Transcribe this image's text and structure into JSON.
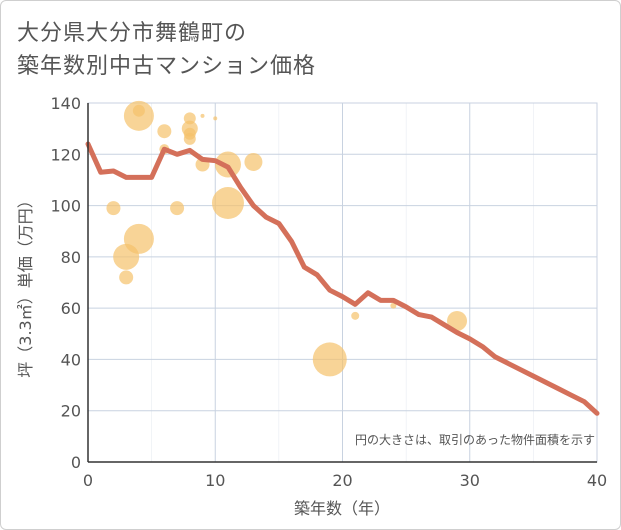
{
  "title_line1": "大分県大分市舞鶴町の",
  "title_line2": "築年数別中古マンション価格",
  "note": "円の大きさは、取引のあった物件面積を示す",
  "colors": {
    "line": "#d4705a",
    "bubble": "#f5c26b",
    "grid": "#c8d2e0",
    "axis": "#333333"
  },
  "chart_data": {
    "type": "scatter",
    "xlabel": "築年数（年）",
    "ylabel": "坪（3.3㎡）単価（万円）",
    "xlim": [
      0,
      40
    ],
    "ylim": [
      0,
      140
    ],
    "xticks": [
      "0",
      "10",
      "20",
      "30",
      "40"
    ],
    "yticks": [
      "0",
      "20",
      "40",
      "60",
      "80",
      "100",
      "120",
      "140"
    ],
    "grid": true,
    "bubbles": [
      {
        "x": 2,
        "y": 99,
        "r": 7
      },
      {
        "x": 3,
        "y": 80,
        "r": 13
      },
      {
        "x": 3,
        "y": 72,
        "r": 7
      },
      {
        "x": 4,
        "y": 135,
        "r": 15
      },
      {
        "x": 4,
        "y": 137,
        "r": 6
      },
      {
        "x": 4,
        "y": 87,
        "r": 15
      },
      {
        "x": 6,
        "y": 129,
        "r": 7
      },
      {
        "x": 6,
        "y": 122,
        "r": 5
      },
      {
        "x": 7,
        "y": 99,
        "r": 7
      },
      {
        "x": 8,
        "y": 134,
        "r": 6
      },
      {
        "x": 8,
        "y": 130,
        "r": 8
      },
      {
        "x": 8,
        "y": 128,
        "r": 6
      },
      {
        "x": 8,
        "y": 126,
        "r": 6
      },
      {
        "x": 9,
        "y": 135,
        "r": 2
      },
      {
        "x": 9,
        "y": 116,
        "r": 7
      },
      {
        "x": 10,
        "y": 134,
        "r": 2
      },
      {
        "x": 11,
        "y": 116,
        "r": 13
      },
      {
        "x": 11,
        "y": 101,
        "r": 16
      },
      {
        "x": 13,
        "y": 117,
        "r": 9
      },
      {
        "x": 19,
        "y": 40,
        "r": 17
      },
      {
        "x": 21,
        "y": 57,
        "r": 4
      },
      {
        "x": 24,
        "y": 61,
        "r": 3
      },
      {
        "x": 29,
        "y": 55,
        "r": 10
      }
    ],
    "trend": {
      "x": [
        0,
        1,
        2,
        3,
        4,
        5,
        6,
        7,
        8,
        9,
        10,
        11,
        12,
        13,
        14,
        15,
        16,
        17,
        18,
        19,
        20,
        21,
        22,
        23,
        24,
        25,
        26,
        27,
        28,
        29,
        30,
        31,
        32,
        33,
        34,
        35,
        36,
        37,
        38,
        39,
        40
      ],
      "y": [
        124,
        113,
        113.5,
        111,
        111,
        111,
        122,
        120,
        121.5,
        118,
        117.5,
        115,
        107,
        100,
        95.5,
        93,
        86,
        76,
        73,
        67,
        64.5,
        61.5,
        66,
        63,
        63,
        60.5,
        57.5,
        56.5,
        53.5,
        50.5,
        48,
        45,
        41,
        38.5,
        36,
        33.5,
        31,
        28.5,
        26,
        23.5,
        19
      ]
    }
  }
}
